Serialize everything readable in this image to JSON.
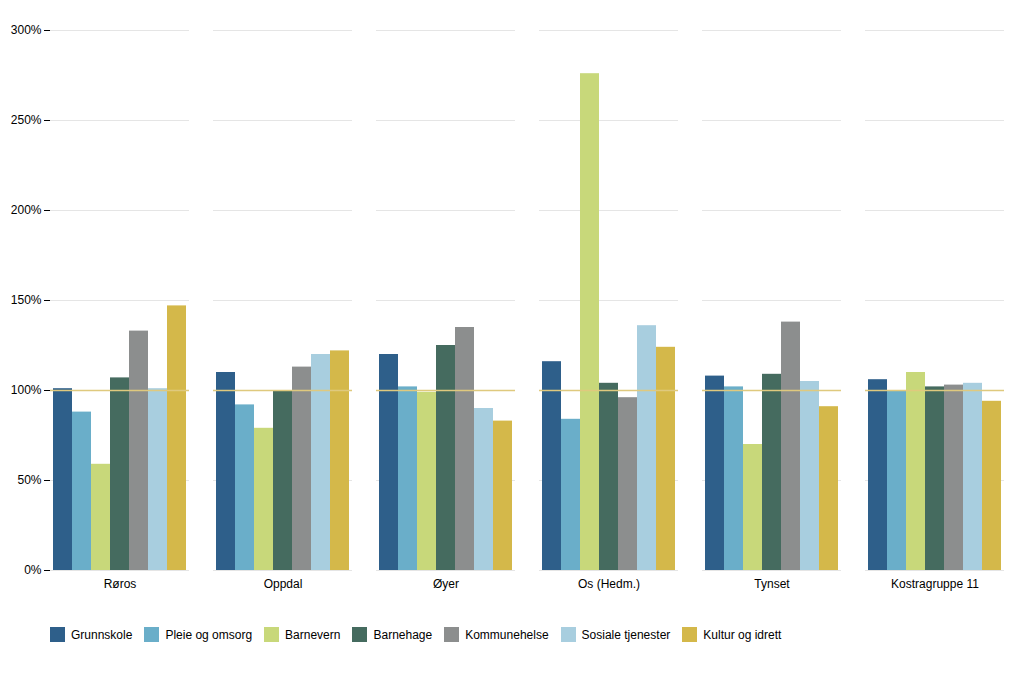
{
  "chart_data": {
    "type": "bar",
    "categories": [
      "Røros",
      "Oppdal",
      "Øyer",
      "Os (Hedm.)",
      "Tynset",
      "Kostragruppe 11"
    ],
    "series": [
      {
        "name": "Grunnskole",
        "color": "#2e5f8a",
        "values": [
          1.01,
          1.1,
          1.2,
          1.16,
          1.08,
          1.06
        ]
      },
      {
        "name": "Pleie og omsorg",
        "color": "#6aaec9",
        "values": [
          0.88,
          0.92,
          1.02,
          0.84,
          1.02,
          1.0
        ]
      },
      {
        "name": "Barnevern",
        "color": "#c8d87a",
        "values": [
          0.59,
          0.79,
          0.99,
          2.76,
          0.7,
          1.1
        ]
      },
      {
        "name": "Barnehage",
        "color": "#456b5f",
        "values": [
          1.07,
          1.0,
          1.25,
          1.04,
          1.09,
          1.02
        ]
      },
      {
        "name": "Kommunehelse",
        "color": "#8c8e8e",
        "values": [
          1.33,
          1.13,
          1.35,
          0.96,
          1.38,
          1.03
        ]
      },
      {
        "name": "Sosiale tjenester",
        "color": "#a8cedf",
        "values": [
          1.01,
          1.2,
          0.9,
          1.36,
          1.05,
          1.04
        ]
      },
      {
        "name": "Kultur og idrett",
        "color": "#d4b84a",
        "values": [
          1.47,
          1.22,
          0.83,
          1.24,
          0.91,
          0.94
        ]
      }
    ],
    "ylim": [
      0,
      3.0
    ],
    "yticks": [
      {
        "value": 0.0,
        "label": "0%"
      },
      {
        "value": 0.5,
        "label": "50%"
      },
      {
        "value": 1.0,
        "label": "100%"
      },
      {
        "value": 1.5,
        "label": "150%"
      },
      {
        "value": 2.0,
        "label": "200%"
      },
      {
        "value": 2.5,
        "label": "250%"
      },
      {
        "value": 3.0,
        "label": "300%"
      }
    ],
    "reference_line": {
      "value": 1.0,
      "color": "#dfc97e"
    },
    "grid": true,
    "legend": "bottom"
  }
}
